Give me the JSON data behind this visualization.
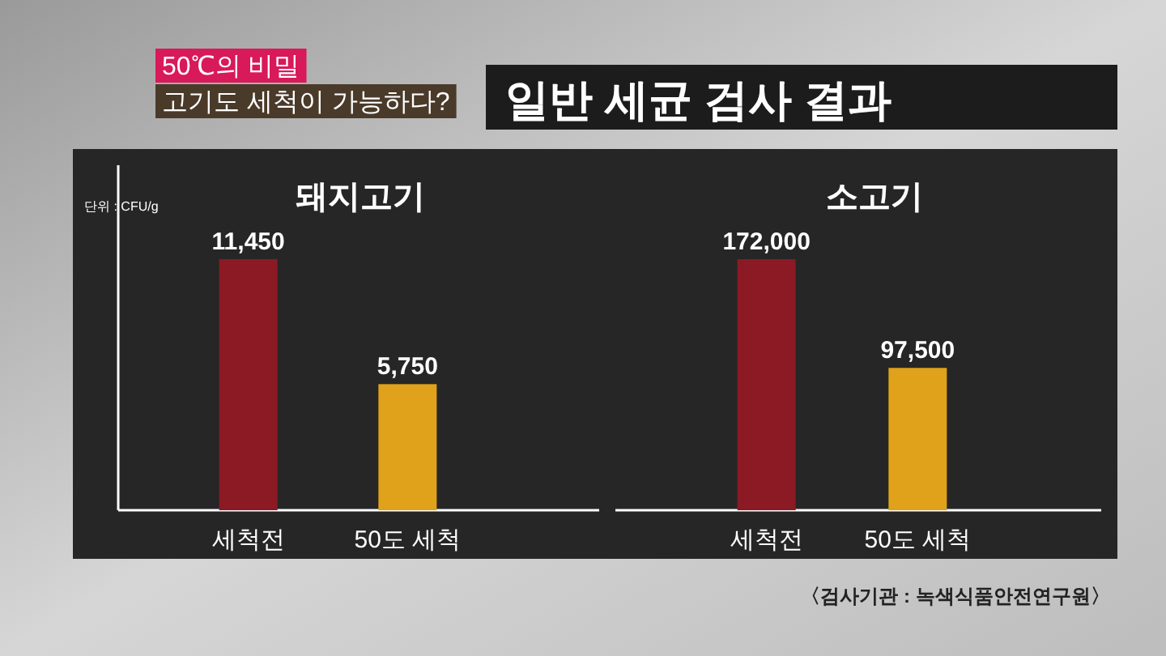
{
  "chart_data": [
    {
      "type": "other",
      "title": "일반 세균 검사 결과",
      "annotations": [
        "50℃의 비밀",
        "고기도 세척이 가능하다?"
      ]
    },
    {
      "type": "bar",
      "title": "돼지고기",
      "ylabel": "단위 : CFU/g",
      "categories": [
        "세척전",
        "50도 세척"
      ],
      "values": [
        11450,
        5750
      ],
      "value_labels": [
        "11,450",
        "5,750"
      ],
      "colors": [
        "#8b1a24",
        "#e0a21a"
      ]
    },
    {
      "type": "bar",
      "title": "소고기",
      "categories": [
        "세척전",
        "50도 세척"
      ],
      "values": [
        172000,
        97500
      ],
      "value_labels": [
        "172,000",
        "97,500"
      ],
      "colors": [
        "#8b1a24",
        "#e0a21a"
      ],
      "annotations": [
        "〈검사기관 : 녹색식품안전연구원〉"
      ]
    }
  ]
}
